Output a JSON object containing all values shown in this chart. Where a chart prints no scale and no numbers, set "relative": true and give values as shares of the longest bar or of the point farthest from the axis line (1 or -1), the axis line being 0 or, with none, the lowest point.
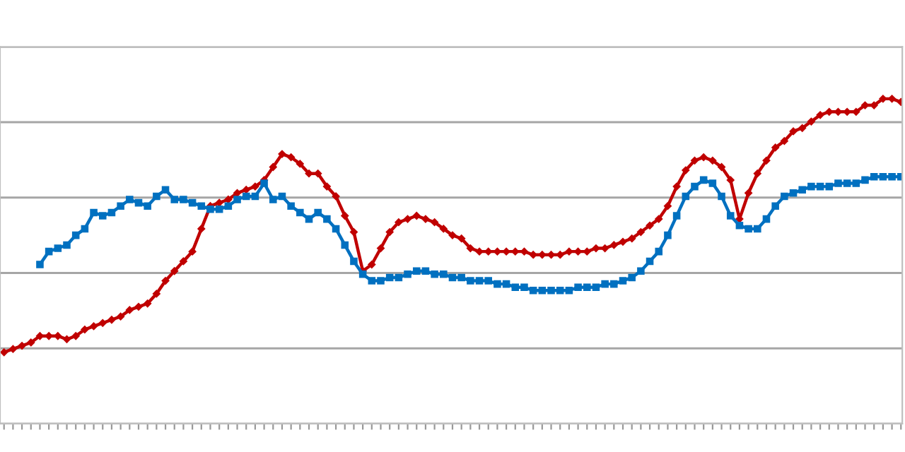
{
  "chart_data": {
    "type": "line",
    "relative": true,
    "grid": "y",
    "categories": [
      null,
      null,
      null,
      null,
      null,
      null,
      null,
      null,
      null,
      null,
      null,
      null,
      null,
      null,
      null,
      null,
      null,
      null,
      null,
      null,
      null,
      null,
      null,
      null,
      null,
      null,
      null,
      null,
      null,
      null,
      null,
      null,
      null,
      null,
      null,
      null,
      null,
      null,
      null,
      null,
      null,
      null,
      null,
      null,
      null,
      null,
      null,
      null,
      null,
      null,
      null,
      null,
      null,
      null,
      null,
      null,
      null,
      null,
      null,
      null,
      null,
      null,
      null,
      null,
      null,
      null,
      null,
      null,
      null,
      null,
      null,
      null,
      null,
      null,
      null,
      null,
      null,
      null,
      null,
      null,
      null,
      null,
      null,
      null,
      null,
      null,
      null,
      null,
      null,
      null,
      null,
      null,
      null,
      null,
      null,
      null,
      null,
      null,
      null,
      null,
      null
    ],
    "series": [
      {
        "color": "#c00000",
        "marker": "diamond",
        "values": [
          0.22,
          0.23,
          0.24,
          0.25,
          0.27,
          0.27,
          0.27,
          0.26,
          0.27,
          0.29,
          0.3,
          0.31,
          0.32,
          0.33,
          0.35,
          0.36,
          0.37,
          0.4,
          0.44,
          0.47,
          0.5,
          0.53,
          0.6,
          0.67,
          0.68,
          0.69,
          0.71,
          0.72,
          0.73,
          0.75,
          0.79,
          0.83,
          0.82,
          0.8,
          0.77,
          0.77,
          0.73,
          0.7,
          0.64,
          0.59,
          0.47,
          0.49,
          0.54,
          0.59,
          0.62,
          0.63,
          0.64,
          0.63,
          0.62,
          0.6,
          0.58,
          0.57,
          0.54,
          0.53,
          0.53,
          0.53,
          0.53,
          0.53,
          0.53,
          0.52,
          0.52,
          0.52,
          0.52,
          0.53,
          0.53,
          0.53,
          0.54,
          0.54,
          0.55,
          0.56,
          0.57,
          0.59,
          0.61,
          0.63,
          0.67,
          0.73,
          0.78,
          0.81,
          0.82,
          0.81,
          0.79,
          0.75,
          0.63,
          0.71,
          0.77,
          0.81,
          0.85,
          0.87,
          0.9,
          0.91,
          0.93,
          0.95,
          0.96,
          0.96,
          0.96,
          0.96,
          0.98,
          0.98,
          1.0,
          1.0,
          0.99
        ]
      },
      {
        "color": "#0070c0",
        "marker": "square",
        "values": [
          null,
          null,
          null,
          null,
          0.49,
          0.53,
          0.54,
          0.55,
          0.58,
          0.6,
          0.65,
          0.64,
          0.65,
          0.67,
          0.69,
          0.68,
          0.67,
          0.7,
          0.72,
          0.69,
          0.69,
          0.68,
          0.67,
          0.66,
          0.66,
          0.67,
          0.69,
          0.7,
          0.7,
          0.74,
          0.69,
          0.7,
          0.67,
          0.65,
          0.63,
          0.65,
          0.63,
          0.6,
          0.55,
          0.5,
          0.46,
          0.44,
          0.44,
          0.45,
          0.45,
          0.46,
          0.47,
          0.47,
          0.46,
          0.46,
          0.45,
          0.45,
          0.44,
          0.44,
          0.44,
          0.43,
          0.43,
          0.42,
          0.42,
          0.41,
          0.41,
          0.41,
          0.41,
          0.41,
          0.42,
          0.42,
          0.42,
          0.43,
          0.43,
          0.44,
          0.45,
          0.47,
          0.5,
          0.53,
          0.58,
          0.64,
          0.7,
          0.73,
          0.75,
          0.74,
          0.7,
          0.64,
          0.61,
          0.6,
          0.6,
          0.63,
          0.67,
          0.7,
          0.71,
          0.72,
          0.73,
          0.73,
          0.73,
          0.74,
          0.74,
          0.74,
          0.75,
          0.76,
          0.76,
          0.76,
          0.76
        ]
      }
    ]
  }
}
